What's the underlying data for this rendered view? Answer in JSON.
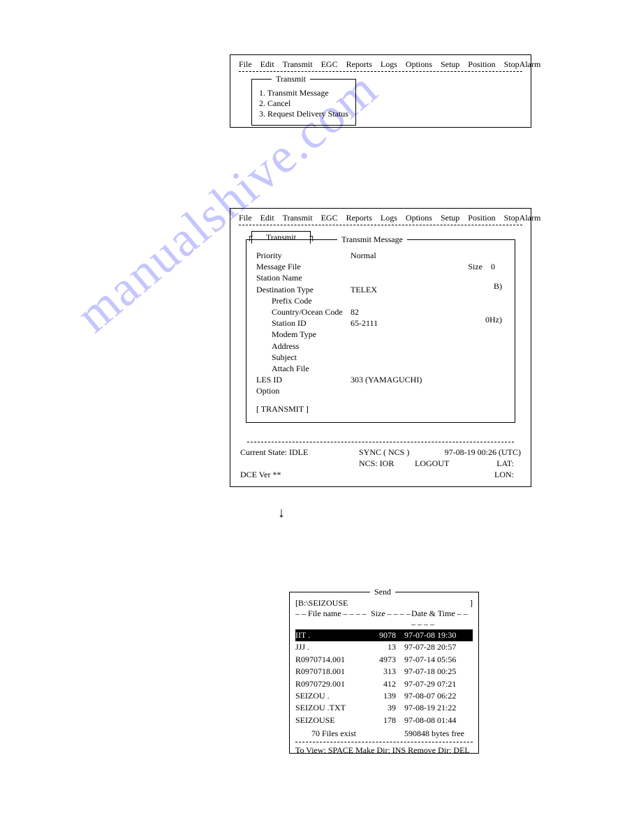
{
  "menu": [
    "File",
    "Edit",
    "Transmit",
    "EGC",
    "Reports",
    "Logs",
    "Options",
    "Setup",
    "Position",
    "StopAlarm"
  ],
  "panel1": {
    "dropdown_title": "Transmit",
    "items": [
      "1. Transmit Message",
      "2. Cancel",
      "3. Request Delivery Status"
    ]
  },
  "panel2": {
    "transmit_label": "Transmit",
    "message_box_title": "Transmit Message",
    "fields": {
      "priority_label": "Priority",
      "priority_val": "Normal",
      "priority_right": "B)",
      "msgfile_label": "Message File",
      "msgfile_right_label": "Size",
      "msgfile_right_val": "0",
      "station_label": "Station Name",
      "dest_label": "Destination Type",
      "dest_val": "TELEX",
      "dest_right": "0Hz)",
      "prefix_label": "Prefix Code",
      "country_label": "Country/Ocean Code",
      "country_val": "82",
      "stid_label": "Station ID",
      "stid_val": "65-2111",
      "modem_label": "Modem Type",
      "addr_label": "Address",
      "subj_label": "Subject",
      "attach_label": "Attach File",
      "les_label": "LES ID",
      "les_val": "303 (YAMAGUCHI)",
      "option_label": "Option",
      "transmit_btn": "[  TRANSMIT  ]"
    },
    "status": {
      "cur_state": "Current State: IDLE",
      "sync": "SYNC ( NCS )",
      "dt": "97-08-19  00:26 (UTC)",
      "ncs": "NCS:  IOR",
      "logout": "LOGOUT",
      "lat": "LAT:",
      "lon": "LON:",
      "dce": "DCE Ver  **"
    }
  },
  "send": {
    "title": "Send",
    "path": "[B:\\SEIZOUSE",
    "bracket_right": "]",
    "header_left": "– –  File name – – – –",
    "header_mid": "Size – – – –",
    "header_right": "Date & Time  – – – – – –",
    "rows": [
      {
        "name": "IIT       .",
        "size": "9078",
        "dt": "97-07-08  19:30",
        "sel": true
      },
      {
        "name": "JJJ       .",
        "size": "13",
        "dt": "97-07-28  20:57"
      },
      {
        "name": "R0970714.001",
        "size": "4973",
        "dt": "97-07-14  05:56"
      },
      {
        "name": "R0970718.001",
        "size": "313",
        "dt": "97-07-18  00:25"
      },
      {
        "name": "R0970729.001",
        "size": "412",
        "dt": "97-07-29  07:21"
      },
      {
        "name": "SEIZOU   .",
        "size": "139",
        "dt": "97-08-07  06:22"
      },
      {
        "name": "SEIZOU   .TXT",
        "size": "39",
        "dt": "97-08-19  21:22"
      },
      {
        "name": "SEIZOUSE",
        "size": "178",
        "dt": "97-08-08  01:44"
      }
    ],
    "footer1_left": "70  Files exist",
    "footer1_right": "590848 bytes free",
    "footer2": "To View: SPACE     Make Dir: INS       Remove Dir: DEL"
  },
  "colors": {
    "text": "#000000",
    "bg": "#ffffff",
    "watermark": "#9999ff"
  }
}
